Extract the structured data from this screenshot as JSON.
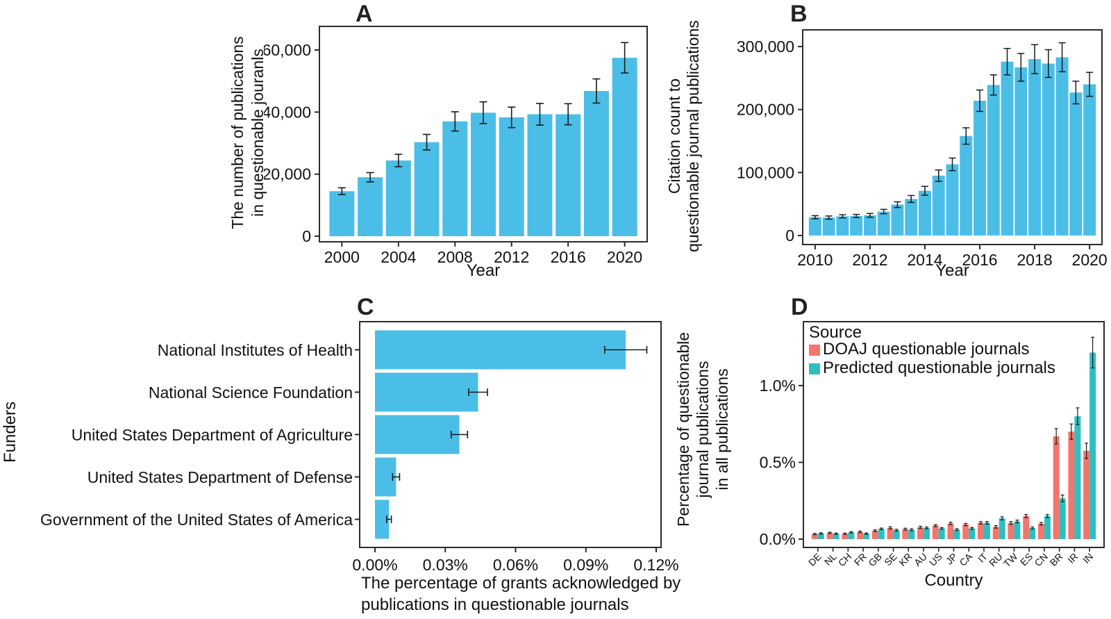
{
  "figure": {
    "background": "#FFFFFF",
    "colors": {
      "bar_blue": "#4BBEE7",
      "doaj_red": "#F2766E",
      "predicted_teal": "#2FBEBF",
      "axis": "#2B2B2B",
      "error": "#1A1A1A",
      "text": "#111111"
    }
  },
  "panels": {
    "a": {
      "letter": "A",
      "ylabel_lines": [
        "The number of publications",
        "in questionable jouranls"
      ],
      "xlabel": "Year"
    },
    "b": {
      "letter": "B",
      "ylabel_lines": [
        "Citation count to",
        "questionable journal publications"
      ],
      "xlabel": "Year"
    },
    "c": {
      "letter": "C",
      "ylabel": "Funders",
      "xlabel_lines": [
        "The percentage of grants acknowledged by",
        "publications in questionable journals"
      ]
    },
    "d": {
      "letter": "D",
      "ylabel_lines": [
        "Percentage of questionable",
        "journal publications",
        "in all publications"
      ],
      "xlabel": "Country"
    }
  },
  "chart_data": [
    {
      "panel": "a",
      "type": "bar",
      "orientation": "vertical",
      "title": "A",
      "xlabel": "Year",
      "ylabel": "The number of publications in questionable jouranls",
      "x": [
        2000,
        2002,
        2004,
        2006,
        2008,
        2010,
        2012,
        2014,
        2016,
        2018,
        2020
      ],
      "values": [
        14500,
        19000,
        24400,
        30300,
        37000,
        39800,
        38300,
        39300,
        39300,
        46800,
        57500
      ],
      "errors": [
        1100,
        1500,
        2000,
        2500,
        3100,
        3500,
        3300,
        3500,
        3400,
        3900,
        4900
      ],
      "ylim": [
        0,
        64000
      ],
      "grid": false,
      "y_ticks": [
        {
          "v": 0,
          "label": "0"
        },
        {
          "v": 20000,
          "label": "20,000"
        },
        {
          "v": 40000,
          "label": "40,000"
        },
        {
          "v": 60000,
          "label": "60,000"
        }
      ],
      "x_ticks": [
        {
          "index": 0,
          "label": "2000"
        },
        {
          "index": 2,
          "label": "2004"
        },
        {
          "index": 4,
          "label": "2008"
        },
        {
          "index": 6,
          "label": "2012"
        },
        {
          "index": 8,
          "label": "2016"
        },
        {
          "index": 10,
          "label": "2020"
        }
      ]
    },
    {
      "panel": "b",
      "type": "bar",
      "orientation": "vertical",
      "title": "B",
      "xlabel": "Year",
      "ylabel": "Citation count to questionable journal publications",
      "x": [
        2010,
        2010.5,
        2011,
        2011.5,
        2012,
        2012.5,
        2013,
        2013.5,
        2014,
        2014.5,
        2015,
        2015.5,
        2016,
        2016.5,
        2017,
        2017.5,
        2018,
        2018.5,
        2019,
        2019.5,
        2020
      ],
      "values": [
        29000,
        28500,
        30500,
        31000,
        32000,
        38000,
        49000,
        58000,
        71000,
        95000,
        113000,
        158000,
        214000,
        239000,
        276000,
        267000,
        280000,
        273000,
        283000,
        227000,
        240000
      ],
      "errors": [
        2500,
        2500,
        2500,
        2500,
        3000,
        3500,
        4500,
        5500,
        7000,
        9000,
        10000,
        13000,
        17000,
        16000,
        21000,
        22000,
        23000,
        22000,
        23000,
        18000,
        19000
      ],
      "ylim": [
        0,
        320000
      ],
      "grid": false,
      "y_ticks": [
        {
          "v": 0,
          "label": "0"
        },
        {
          "v": 100000,
          "label": "100,000"
        },
        {
          "v": 200000,
          "label": "200,000"
        },
        {
          "v": 300000,
          "label": "300,000"
        }
      ],
      "x_ticks": [
        {
          "index": 0,
          "label": "2010"
        },
        {
          "index": 4,
          "label": "2012"
        },
        {
          "index": 8,
          "label": "2014"
        },
        {
          "index": 12,
          "label": "2016"
        },
        {
          "index": 16,
          "label": "2018"
        },
        {
          "index": 20,
          "label": "2020"
        }
      ]
    },
    {
      "panel": "c",
      "type": "bar",
      "orientation": "horizontal",
      "title": "C",
      "xlabel": "The percentage of grants acknowledged by publications in questionable journals",
      "ylabel": "Funders",
      "categories": [
        "National Institutes of Health",
        "National Science Foundation",
        "United States Department of Agriculture",
        "United States Department of Defense",
        "Government of the United States of America"
      ],
      "values": [
        0.107,
        0.044,
        0.036,
        0.009,
        0.006
      ],
      "errors": [
        0.009,
        0.004,
        0.0035,
        0.0015,
        0.001
      ],
      "xlim": [
        0,
        0.122
      ],
      "grid": false,
      "x_ticks": [
        {
          "v": 0,
          "label": "0.00%"
        },
        {
          "v": 0.03,
          "label": "0.03%"
        },
        {
          "v": 0.06,
          "label": "0.06%"
        },
        {
          "v": 0.09,
          "label": "0.09%"
        },
        {
          "v": 0.12,
          "label": "0.12%"
        }
      ]
    },
    {
      "panel": "d",
      "type": "bar",
      "orientation": "vertical-grouped",
      "title": "D",
      "xlabel": "Country",
      "ylabel": "Percentage of questionable journal publications in all publications",
      "legend_title": "Source",
      "legend_position": "top-left-inside",
      "categories": [
        "DE",
        "NL",
        "CH",
        "FR",
        "GB",
        "SE",
        "KR",
        "AU",
        "US",
        "JP",
        "CA",
        "IT",
        "RU",
        "TW",
        "ES",
        "CN",
        "BR",
        "IR",
        "IN"
      ],
      "series": [
        {
          "name": "DOAJ questionable journals",
          "color": "#F2766E",
          "values": [
            0.033,
            0.041,
            0.035,
            0.047,
            0.055,
            0.073,
            0.065,
            0.077,
            0.088,
            0.102,
            0.095,
            0.106,
            0.08,
            0.105,
            0.15,
            0.1,
            0.67,
            0.7,
            0.575
          ],
          "errors": [
            0.004,
            0.004,
            0.004,
            0.005,
            0.005,
            0.007,
            0.006,
            0.007,
            0.006,
            0.008,
            0.007,
            0.008,
            0.008,
            0.009,
            0.01,
            0.008,
            0.05,
            0.05,
            0.05
          ]
        },
        {
          "name": "Predicted questionable journals",
          "color": "#2FBEBF",
          "values": [
            0.037,
            0.035,
            0.044,
            0.036,
            0.067,
            0.058,
            0.061,
            0.073,
            0.07,
            0.062,
            0.07,
            0.106,
            0.135,
            0.115,
            0.072,
            0.15,
            0.265,
            0.8,
            1.215
          ],
          "errors": [
            0.004,
            0.004,
            0.004,
            0.004,
            0.005,
            0.006,
            0.006,
            0.006,
            0.005,
            0.006,
            0.006,
            0.008,
            0.01,
            0.009,
            0.007,
            0.01,
            0.022,
            0.055,
            0.1
          ]
        }
      ],
      "ylim": [
        0,
        1.35
      ],
      "grid": false,
      "y_ticks": [
        {
          "v": 0,
          "label": "0.0%"
        },
        {
          "v": 0.5,
          "label": "0.5%"
        },
        {
          "v": 1.0,
          "label": "1.0%"
        }
      ]
    }
  ]
}
